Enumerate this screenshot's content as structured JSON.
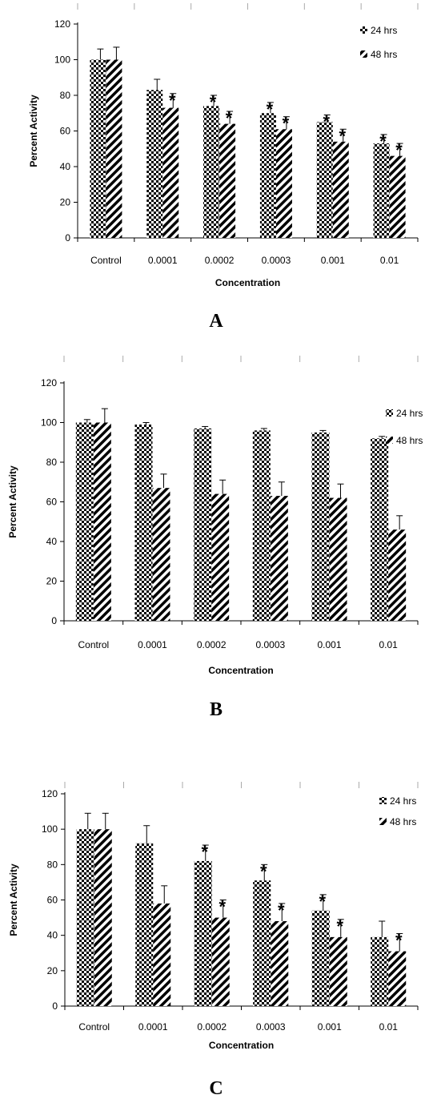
{
  "chart_data": [
    {
      "type": "bar",
      "panel_label": "A",
      "categories": [
        "Control",
        "0.0001",
        "0.0002",
        "0.0003",
        "0.001",
        "0.01"
      ],
      "xlabel": "Concentration",
      "ylabel": "Percent Activity",
      "ylim": [
        0,
        120
      ],
      "yticks": [
        0,
        20,
        40,
        60,
        80,
        100,
        120
      ],
      "legend_position": "top-right",
      "series": [
        {
          "name": "24 hrs",
          "values": [
            100,
            83,
            74,
            70,
            65,
            53
          ],
          "errors": [
            6,
            6,
            6,
            6,
            4,
            5
          ],
          "significant": [
            false,
            false,
            true,
            true,
            true,
            true
          ]
        },
        {
          "name": "48 hrs",
          "values": [
            100,
            73,
            64,
            61,
            54,
            46
          ],
          "errors": [
            7,
            8,
            7,
            7,
            7,
            7
          ],
          "significant": [
            false,
            true,
            true,
            true,
            true,
            true
          ]
        }
      ],
      "significance_marker": "*"
    },
    {
      "type": "bar",
      "panel_label": "B",
      "categories": [
        "Control",
        "0.0001",
        "0.0002",
        "0.0003",
        "0.001",
        "0.01"
      ],
      "xlabel": "Concentration",
      "ylabel": "Percent Activity",
      "ylim": [
        0,
        120
      ],
      "yticks": [
        0,
        20,
        40,
        60,
        80,
        100,
        120
      ],
      "legend_position": "top-right",
      "series": [
        {
          "name": "24 hrs",
          "values": [
            100,
            99,
            97,
            96,
            95,
            92
          ],
          "errors": [
            1.5,
            1,
            1,
            1,
            1,
            1
          ],
          "significant": [
            false,
            false,
            false,
            false,
            false,
            false
          ]
        },
        {
          "name": "48 hrs",
          "values": [
            100,
            67,
            64,
            63,
            62,
            46
          ],
          "errors": [
            7,
            7,
            7,
            7,
            7,
            7
          ],
          "significant": [
            false,
            false,
            false,
            false,
            false,
            false
          ]
        }
      ],
      "significance_marker": "*"
    },
    {
      "type": "bar",
      "panel_label": "C",
      "categories": [
        "Control",
        "0.0001",
        "0.0002",
        "0.0003",
        "0.001",
        "0.01"
      ],
      "xlabel": "Concentration",
      "ylabel": "Percent Activity",
      "ylim": [
        0,
        120
      ],
      "yticks": [
        0,
        20,
        40,
        60,
        80,
        100,
        120
      ],
      "legend_position": "top-right",
      "series": [
        {
          "name": "24 hrs",
          "values": [
            100,
            92,
            82,
            71,
            54,
            39
          ],
          "errors": [
            9,
            10,
            9,
            9,
            9,
            9
          ],
          "significant": [
            false,
            false,
            true,
            true,
            true,
            false
          ]
        },
        {
          "name": "48 hrs",
          "values": [
            100,
            58,
            50,
            48,
            39,
            31
          ],
          "errors": [
            9,
            10,
            10,
            10,
            10,
            10
          ],
          "significant": [
            false,
            false,
            true,
            true,
            true,
            true
          ]
        }
      ],
      "significance_marker": "*"
    }
  ]
}
